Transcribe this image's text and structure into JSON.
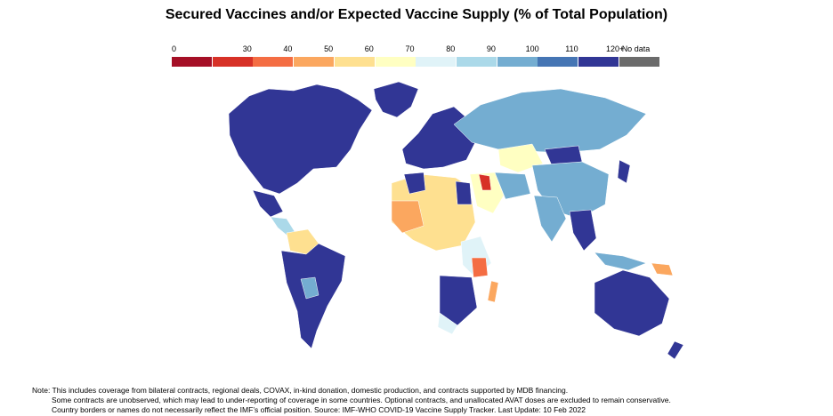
{
  "title": "Secured Vaccines and/or Expected Vaccine Supply (% of Total Population)",
  "legend": [
    {
      "label": "0",
      "color": "#a50f26"
    },
    {
      "label": "30",
      "color": "#d73127"
    },
    {
      "label": "40",
      "color": "#f46d43"
    },
    {
      "label": "50",
      "color": "#fba75f"
    },
    {
      "label": "60",
      "color": "#fee090"
    },
    {
      "label": "70",
      "color": "#ffffc2"
    },
    {
      "label": "80",
      "color": "#e0f3f8"
    },
    {
      "label": "90",
      "color": "#abd9e9"
    },
    {
      "label": "100",
      "color": "#74add1"
    },
    {
      "label": "110",
      "color": "#4575b4"
    },
    {
      "label": "120+",
      "color": "#313695"
    },
    {
      "label": "No data",
      "color": "#6b6b6b"
    }
  ],
  "note": {
    "line1": "Note: This includes coverage from bilateral contracts, regional deals, COVAX, in-kind donation, domestic production, and contracts supported by MDB financing.",
    "line2": "Some contracts are unobserved, which may lead to under-reporting of coverage in some countries. Optional contracts, and unallocated AVAT doses are excluded to remain conservative.",
    "line3": "Country borders or names do not necessarily reflect the IMF’s official position. Source: IMF-WHO COVID-19 Vaccine Supply Tracker. Last Update: 10 Feb 2022"
  }
}
